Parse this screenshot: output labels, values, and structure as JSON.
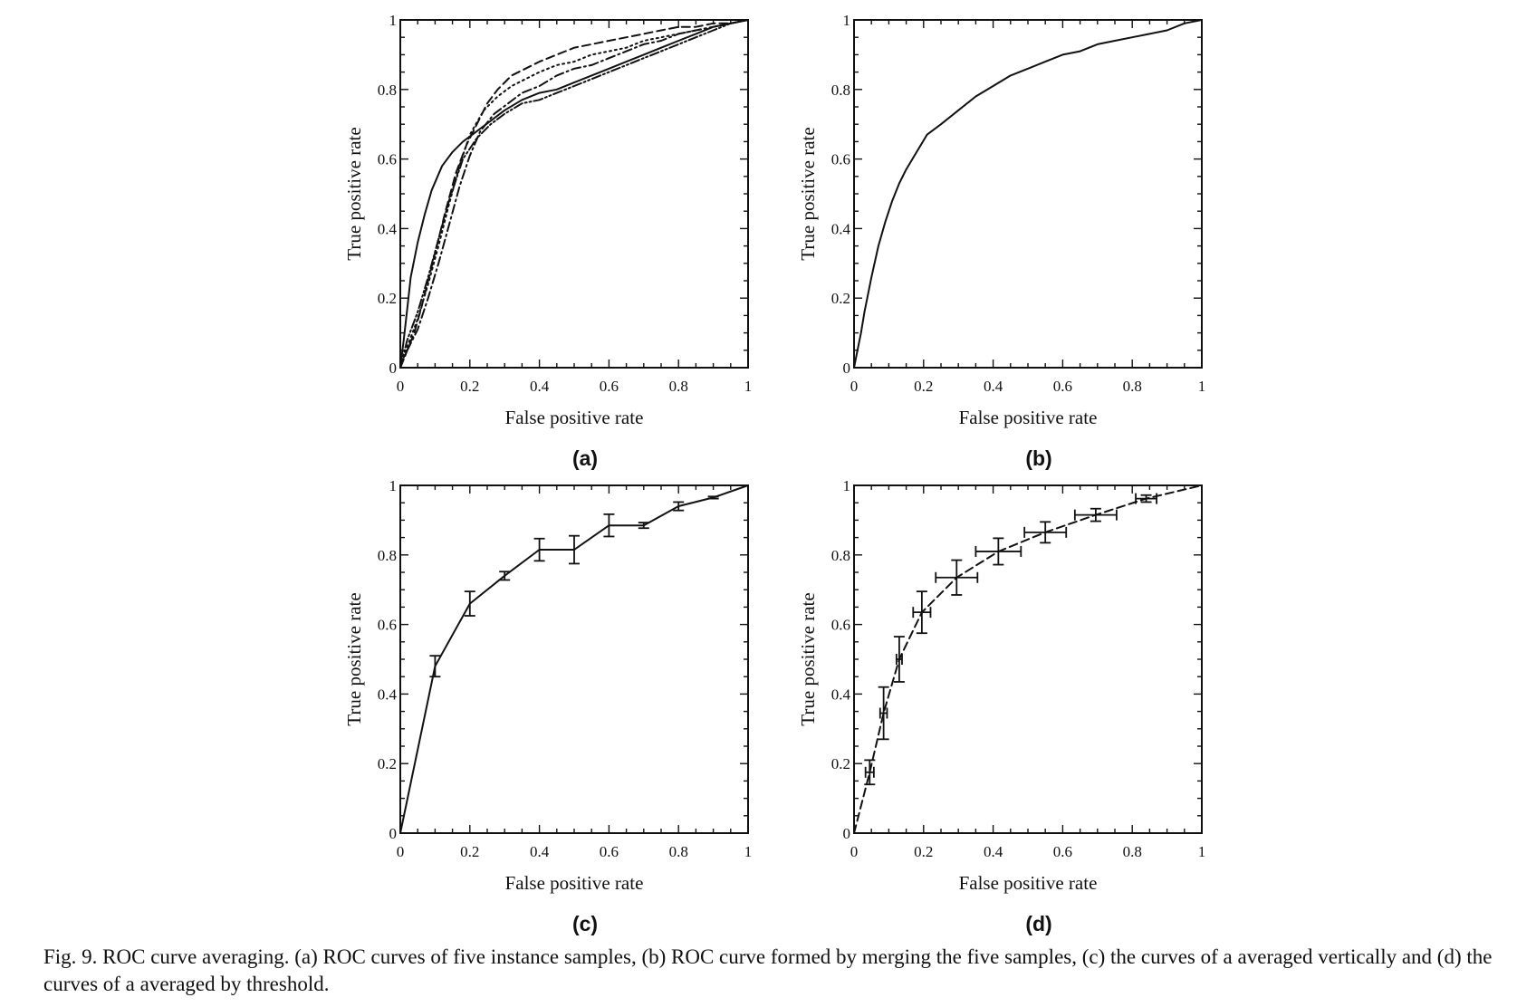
{
  "caption": "Fig. 9.  ROC curve averaging. (a) ROC curves of five instance samples, (b) ROC curve formed by merging the five samples, (c) the curves of a averaged vertically and (d) the curves of a averaged by threshold.",
  "chart_data": [
    {
      "panel": "(a)",
      "type": "line",
      "xlabel": "False positive rate",
      "ylabel": "True positive rate",
      "xlim": [
        0,
        1
      ],
      "ylim": [
        0,
        1
      ],
      "xticks": [
        "0",
        "0.2",
        "0.4",
        "0.6",
        "0.8",
        "1"
      ],
      "yticks": [
        "0",
        "0.2",
        "0.4",
        "0.6",
        "0.8",
        "1"
      ],
      "grid": false,
      "series": [
        {
          "style": "solid",
          "x": [
            0,
            0.01,
            0.02,
            0.03,
            0.05,
            0.07,
            0.09,
            0.12,
            0.15,
            0.18,
            0.22,
            0.26,
            0.3,
            0.35,
            0.4,
            0.45,
            0.5,
            0.55,
            0.6,
            0.65,
            0.7,
            0.75,
            0.8,
            0.85,
            0.9,
            0.95,
            1
          ],
          "y": [
            0,
            0.08,
            0.17,
            0.26,
            0.36,
            0.44,
            0.51,
            0.58,
            0.62,
            0.65,
            0.68,
            0.71,
            0.74,
            0.77,
            0.79,
            0.8,
            0.82,
            0.84,
            0.86,
            0.88,
            0.9,
            0.92,
            0.94,
            0.96,
            0.98,
            0.99,
            1
          ]
        },
        {
          "style": "dashed",
          "x": [
            0,
            0.02,
            0.04,
            0.06,
            0.08,
            0.1,
            0.13,
            0.16,
            0.19,
            0.22,
            0.25,
            0.28,
            0.32,
            0.36,
            0.4,
            0.45,
            0.5,
            0.55,
            0.6,
            0.65,
            0.7,
            0.75,
            0.8,
            0.85,
            0.9,
            0.95,
            1
          ],
          "y": [
            0,
            0.05,
            0.1,
            0.17,
            0.25,
            0.33,
            0.45,
            0.56,
            0.64,
            0.7,
            0.76,
            0.8,
            0.84,
            0.86,
            0.88,
            0.9,
            0.92,
            0.93,
            0.94,
            0.95,
            0.96,
            0.97,
            0.98,
            0.98,
            0.99,
            0.99,
            1
          ]
        },
        {
          "style": "dotted",
          "x": [
            0,
            0.02,
            0.05,
            0.08,
            0.11,
            0.14,
            0.17,
            0.2,
            0.24,
            0.28,
            0.32,
            0.36,
            0.4,
            0.45,
            0.5,
            0.55,
            0.6,
            0.65,
            0.7,
            0.75,
            0.8,
            0.85,
            0.9,
            0.95,
            1
          ],
          "y": [
            0,
            0.06,
            0.14,
            0.24,
            0.35,
            0.47,
            0.58,
            0.67,
            0.74,
            0.78,
            0.81,
            0.83,
            0.85,
            0.87,
            0.88,
            0.9,
            0.91,
            0.92,
            0.94,
            0.95,
            0.96,
            0.97,
            0.98,
            0.99,
            1
          ]
        },
        {
          "style": "dash-dot",
          "x": [
            0,
            0.02,
            0.05,
            0.08,
            0.11,
            0.14,
            0.17,
            0.2,
            0.23,
            0.27,
            0.31,
            0.35,
            0.4,
            0.45,
            0.5,
            0.55,
            0.6,
            0.65,
            0.7,
            0.75,
            0.8,
            0.85,
            0.9,
            0.95,
            1
          ],
          "y": [
            0,
            0.05,
            0.11,
            0.2,
            0.3,
            0.41,
            0.52,
            0.61,
            0.68,
            0.73,
            0.76,
            0.79,
            0.81,
            0.84,
            0.86,
            0.87,
            0.89,
            0.91,
            0.93,
            0.94,
            0.96,
            0.97,
            0.98,
            0.99,
            1
          ]
        },
        {
          "style": "dash-dot-dot",
          "x": [
            0,
            0.02,
            0.05,
            0.08,
            0.11,
            0.14,
            0.18,
            0.22,
            0.26,
            0.3,
            0.35,
            0.4,
            0.45,
            0.5,
            0.55,
            0.6,
            0.65,
            0.7,
            0.75,
            0.8,
            0.85,
            0.9,
            0.95,
            1
          ],
          "y": [
            0,
            0.08,
            0.16,
            0.26,
            0.37,
            0.48,
            0.6,
            0.66,
            0.7,
            0.73,
            0.76,
            0.77,
            0.79,
            0.81,
            0.83,
            0.85,
            0.87,
            0.89,
            0.91,
            0.93,
            0.95,
            0.97,
            0.99,
            1
          ]
        }
      ]
    },
    {
      "panel": "(b)",
      "type": "line",
      "xlabel": "False positive rate",
      "ylabel": "True positive rate",
      "xlim": [
        0,
        1
      ],
      "ylim": [
        0,
        1
      ],
      "xticks": [
        "0",
        "0.2",
        "0.4",
        "0.6",
        "0.8",
        "1"
      ],
      "yticks": [
        "0",
        "0.2",
        "0.4",
        "0.6",
        "0.8",
        "1"
      ],
      "grid": false,
      "series": [
        {
          "style": "solid",
          "x": [
            0,
            0.01,
            0.02,
            0.03,
            0.05,
            0.07,
            0.09,
            0.11,
            0.13,
            0.15,
            0.18,
            0.21,
            0.25,
            0.3,
            0.35,
            0.4,
            0.45,
            0.5,
            0.55,
            0.6,
            0.65,
            0.7,
            0.75,
            0.8,
            0.85,
            0.9,
            0.95,
            1
          ],
          "y": [
            0,
            0.05,
            0.1,
            0.16,
            0.26,
            0.35,
            0.42,
            0.48,
            0.53,
            0.57,
            0.62,
            0.67,
            0.7,
            0.74,
            0.78,
            0.81,
            0.84,
            0.86,
            0.88,
            0.9,
            0.91,
            0.93,
            0.94,
            0.95,
            0.96,
            0.97,
            0.99,
            1
          ]
        }
      ]
    },
    {
      "panel": "(c)",
      "type": "line",
      "xlabel": "False positive rate",
      "ylabel": "True positive rate",
      "xlim": [
        0,
        1
      ],
      "ylim": [
        0,
        1
      ],
      "xticks": [
        "0",
        "0.2",
        "0.4",
        "0.6",
        "0.8",
        "1"
      ],
      "yticks": [
        "0",
        "0.2",
        "0.4",
        "0.6",
        "0.8",
        "1"
      ],
      "grid": false,
      "series": [
        {
          "style": "solid",
          "x": [
            0,
            0.1,
            0.2,
            0.3,
            0.4,
            0.5,
            0.6,
            0.7,
            0.8,
            0.9,
            1
          ],
          "y": [
            0,
            0.48,
            0.66,
            0.74,
            0.815,
            0.815,
            0.885,
            0.885,
            0.94,
            0.965,
            1
          ],
          "yerr": [
            0,
            0.03,
            0.035,
            0.012,
            0.032,
            0.04,
            0.032,
            0.008,
            0.012,
            0.003,
            0
          ]
        }
      ]
    },
    {
      "panel": "(d)",
      "type": "line",
      "xlabel": "False positive rate",
      "ylabel": "True positive rate",
      "xlim": [
        0,
        1
      ],
      "ylim": [
        0,
        1
      ],
      "xticks": [
        "0",
        "0.2",
        "0.4",
        "0.6",
        "0.8",
        "1"
      ],
      "yticks": [
        "0",
        "0.2",
        "0.4",
        "0.6",
        "0.8",
        "1"
      ],
      "grid": false,
      "series": [
        {
          "style": "dashed",
          "x": [
            0,
            0.045,
            0.085,
            0.13,
            0.195,
            0.295,
            0.415,
            0.55,
            0.695,
            0.84,
            1
          ],
          "y": [
            0,
            0.175,
            0.345,
            0.5,
            0.635,
            0.735,
            0.81,
            0.865,
            0.915,
            0.962,
            1
          ],
          "xerr": [
            0,
            0.012,
            0.01,
            0.008,
            0.025,
            0.06,
            0.065,
            0.06,
            0.06,
            0.03,
            0
          ],
          "yerr": [
            0,
            0.035,
            0.075,
            0.065,
            0.06,
            0.05,
            0.038,
            0.03,
            0.018,
            0.01,
            0
          ]
        }
      ]
    }
  ]
}
